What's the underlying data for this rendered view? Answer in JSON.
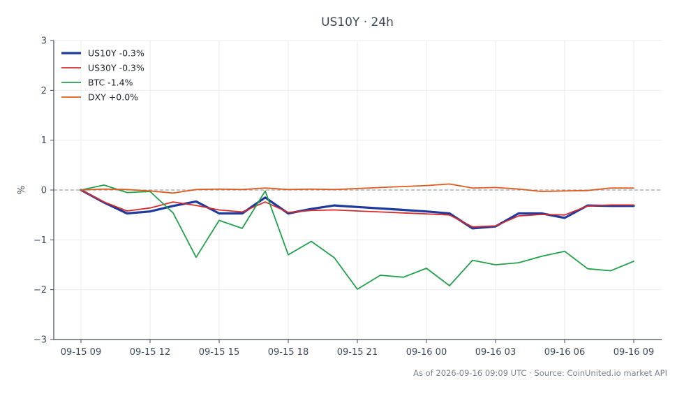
{
  "chart_data": {
    "type": "line",
    "title": "US10Y · 24h",
    "ylabel": "%",
    "xlabel": "",
    "ylim": [
      -3,
      3
    ],
    "yticks": [
      3,
      2,
      1,
      0,
      -1,
      -2,
      -3
    ],
    "ytick_labels": [
      "3",
      "2",
      "1",
      "0",
      "−1",
      "−2",
      "−3"
    ],
    "xlim": [
      0,
      24.6
    ],
    "xticks": [
      0,
      3,
      6,
      9,
      12,
      15,
      18,
      21,
      24
    ],
    "xtick_labels": [
      "09-15 09",
      "09-15 12",
      "09-15 15",
      "09-15 18",
      "09-15 21",
      "09-16 00",
      "09-16 03",
      "09-16 06",
      "09-16 09"
    ],
    "x": [
      0,
      1,
      2,
      3,
      4,
      5,
      6,
      7,
      8,
      9,
      10,
      11,
      12,
      13,
      14,
      15,
      16,
      17,
      18,
      19,
      20,
      21,
      22,
      23,
      24
    ],
    "grid": true,
    "zero_line": true,
    "legend_position": "top-left",
    "series": [
      {
        "name": "US10Y -0.3%",
        "color": "#1f3a9e",
        "width": 3.2,
        "values": [
          0,
          -0.25,
          -0.47,
          -0.43,
          -0.32,
          -0.23,
          -0.47,
          -0.47,
          -0.15,
          -0.47,
          -0.38,
          -0.31,
          -0.34,
          -0.37,
          -0.4,
          -0.43,
          -0.47,
          -0.77,
          -0.73,
          -0.47,
          -0.47,
          -0.56,
          -0.31,
          -0.32,
          -0.32
        ]
      },
      {
        "name": "US30Y -0.3%",
        "color": "#d62b2b",
        "width": 1.8,
        "values": [
          0,
          -0.24,
          -0.42,
          -0.36,
          -0.24,
          -0.31,
          -0.4,
          -0.44,
          -0.24,
          -0.45,
          -0.41,
          -0.4,
          -0.42,
          -0.44,
          -0.46,
          -0.48,
          -0.5,
          -0.74,
          -0.72,
          -0.52,
          -0.49,
          -0.5,
          -0.32,
          -0.3,
          -0.3
        ]
      },
      {
        "name": "BTC -1.4%",
        "color": "#22a04a",
        "width": 1.8,
        "values": [
          0,
          0.1,
          -0.05,
          -0.03,
          -0.46,
          -1.35,
          -0.61,
          -0.77,
          -0.02,
          -1.3,
          -1.03,
          -1.36,
          -1.99,
          -1.71,
          -1.75,
          -1.57,
          -1.92,
          -1.41,
          -1.5,
          -1.46,
          -1.33,
          -1.23,
          -1.58,
          -1.62,
          -1.43
        ]
      },
      {
        "name": "DXY +0.0%",
        "color": "#e05a1b",
        "width": 1.8,
        "values": [
          0,
          0.02,
          0.01,
          -0.02,
          -0.06,
          0.01,
          0.02,
          0.01,
          0.04,
          0.01,
          0.02,
          0.01,
          0.03,
          0.05,
          0.07,
          0.09,
          0.12,
          0.04,
          0.05,
          0.02,
          -0.03,
          -0.02,
          -0.01,
          0.04,
          0.04
        ]
      }
    ]
  },
  "footer": {
    "text": "As of 2026-09-16 09:09 UTC · Source: CoinUnited.io market API"
  },
  "colors": {
    "axis": "#3f4a5a",
    "grid": "#e9ebee",
    "zero_line": "#9aa3b2"
  }
}
